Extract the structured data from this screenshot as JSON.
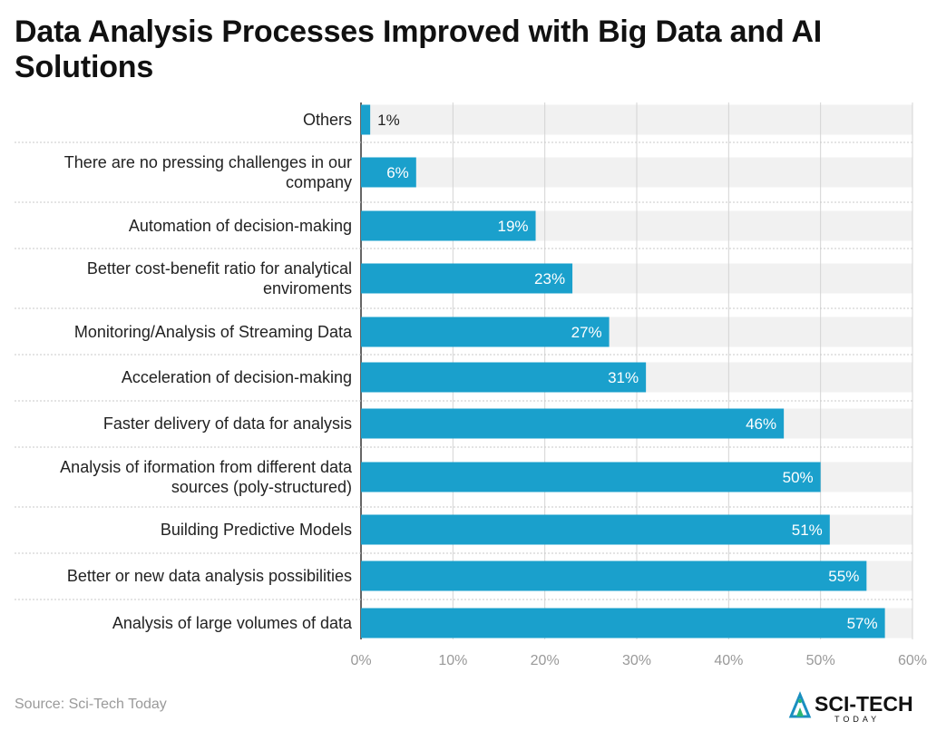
{
  "title": "Data Analysis Processes Improved with Big Data and AI Solutions",
  "source": "Source: Sci-Tech Today",
  "logo": {
    "name": "SCI-TECH",
    "tagline": "TODAY"
  },
  "colors": {
    "bar": "#1aa0cc",
    "track": "#f1f1f1",
    "grid": "#d4d4d4",
    "tick": "#999999"
  },
  "chart_data": {
    "type": "bar",
    "orientation": "horizontal",
    "categories": [
      [
        "Others"
      ],
      [
        "There are no pressing challenges in our",
        "company"
      ],
      [
        "Automation of decision-making"
      ],
      [
        "Better cost-benefit ratio for analytical",
        "enviroments"
      ],
      [
        "Monitoring/Analysis of Streaming Data"
      ],
      [
        "Acceleration of decision-making"
      ],
      [
        "Faster delivery of data for analysis"
      ],
      [
        "Analysis of iformation from different data",
        "sources (poly-structured)"
      ],
      [
        "Building Predictive Models"
      ],
      [
        "Better or new data analysis possibilities"
      ],
      [
        "Analysis of large volumes of data"
      ]
    ],
    "values": [
      1,
      6,
      19,
      23,
      27,
      31,
      46,
      50,
      51,
      55,
      57
    ],
    "data_labels": [
      "1%",
      "6%",
      "19%",
      "23%",
      "27%",
      "31%",
      "46%",
      "50%",
      "51%",
      "55%",
      "57%"
    ],
    "xlim": [
      0,
      60
    ],
    "xticks": [
      0,
      10,
      20,
      30,
      40,
      50,
      60
    ],
    "xtick_labels": [
      "0%",
      "10%",
      "20%",
      "30%",
      "40%",
      "50%",
      "60%"
    ],
    "grid": true,
    "legend": "none"
  }
}
